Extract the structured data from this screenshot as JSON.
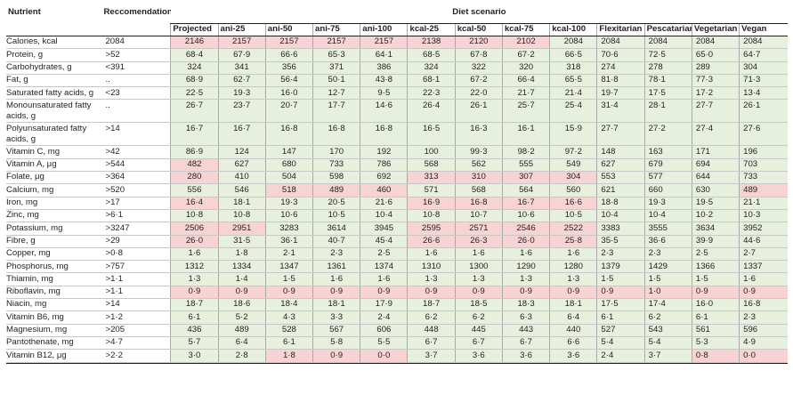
{
  "header": {
    "nutrient_label": "Nutrient",
    "recommendation_label": "Reccomendation",
    "scenario_group_label": "Diet scenario",
    "scenarios": [
      "Projected",
      "ani-25",
      "ani-50",
      "ani-75",
      "ani-100",
      "kcal-25",
      "kcal-50",
      "kcal-75",
      "kcal-100",
      "Flexitarian",
      "Pescatarian",
      "Vegetarian",
      "Vegan"
    ]
  },
  "rows": [
    {
      "nutrient": "Calories, kcal",
      "rec": "2084",
      "values": [
        "2146",
        "2157",
        "2157",
        "2157",
        "2157",
        "2138",
        "2120",
        "2102",
        "2084",
        "2084",
        "2084",
        "2084",
        "2084"
      ],
      "flags": [
        1,
        1,
        1,
        1,
        1,
        1,
        1,
        1,
        0,
        0,
        0,
        0,
        0
      ]
    },
    {
      "nutrient": "Protein, g",
      "rec": ">52",
      "values": [
        "68·4",
        "67·9",
        "66·6",
        "65·3",
        "64·1",
        "68·5",
        "67·8",
        "67·2",
        "66·5",
        "70·6",
        "72·5",
        "65·0",
        "64·7"
      ],
      "flags": [
        0,
        0,
        0,
        0,
        0,
        0,
        0,
        0,
        0,
        0,
        0,
        0,
        0
      ]
    },
    {
      "nutrient": "Carbohydrates, g",
      "rec": "<391",
      "values": [
        "324",
        "341",
        "356",
        "371",
        "386",
        "324",
        "322",
        "320",
        "318",
        "274",
        "278",
        "289",
        "304"
      ],
      "flags": [
        0,
        0,
        0,
        0,
        0,
        0,
        0,
        0,
        0,
        0,
        0,
        0,
        0
      ]
    },
    {
      "nutrient": "Fat, g",
      "rec": "..",
      "values": [
        "68·9",
        "62·7",
        "56·4",
        "50·1",
        "43·8",
        "68·1",
        "67·2",
        "66·4",
        "65·5",
        "81·8",
        "78·1",
        "77·3",
        "71·3"
      ],
      "flags": [
        0,
        0,
        0,
        0,
        0,
        0,
        0,
        0,
        0,
        0,
        0,
        0,
        0
      ]
    },
    {
      "nutrient": "Saturated fatty acids, g",
      "rec": "<23",
      "values": [
        "22·5",
        "19·3",
        "16·0",
        "12·7",
        "9·5",
        "22·3",
        "22·0",
        "21·7",
        "21·4",
        "19·7",
        "17·5",
        "17·2",
        "13·4"
      ],
      "flags": [
        0,
        0,
        0,
        0,
        0,
        0,
        0,
        0,
        0,
        0,
        0,
        0,
        0
      ]
    },
    {
      "nutrient": "Monounsaturated fatty acids, g",
      "rec": "..",
      "values": [
        "26·7",
        "23·7",
        "20·7",
        "17·7",
        "14·6",
        "26·4",
        "26·1",
        "25·7",
        "25·4",
        "31·4",
        "28·1",
        "27·7",
        "26·1"
      ],
      "flags": [
        0,
        0,
        0,
        0,
        0,
        0,
        0,
        0,
        0,
        0,
        0,
        0,
        0
      ]
    },
    {
      "nutrient": "Polyunsaturated fatty acids, g",
      "rec": ">14",
      "values": [
        "16·7",
        "16·7",
        "16·8",
        "16·8",
        "16·8",
        "16·5",
        "16·3",
        "16·1",
        "15·9",
        "27·7",
        "27·2",
        "27·4",
        "27·6"
      ],
      "flags": [
        0,
        0,
        0,
        0,
        0,
        0,
        0,
        0,
        0,
        0,
        0,
        0,
        0
      ]
    },
    {
      "nutrient": "Vitamin C, mg",
      "rec": ">42",
      "values": [
        "86·9",
        "124",
        "147",
        "170",
        "192",
        "100",
        "99·3",
        "98·2",
        "97·2",
        "148",
        "163",
        "171",
        "196"
      ],
      "flags": [
        0,
        0,
        0,
        0,
        0,
        0,
        0,
        0,
        0,
        0,
        0,
        0,
        0
      ]
    },
    {
      "nutrient": "Vitamin A, μg",
      "rec": ">544",
      "values": [
        "482",
        "627",
        "680",
        "733",
        "786",
        "568",
        "562",
        "555",
        "549",
        "627",
        "679",
        "694",
        "703"
      ],
      "flags": [
        1,
        0,
        0,
        0,
        0,
        0,
        0,
        0,
        0,
        0,
        0,
        0,
        0
      ]
    },
    {
      "nutrient": "Folate, μg",
      "rec": ">364",
      "values": [
        "280",
        "410",
        "504",
        "598",
        "692",
        "313",
        "310",
        "307",
        "304",
        "553",
        "577",
        "644",
        "733"
      ],
      "flags": [
        1,
        0,
        0,
        0,
        0,
        1,
        1,
        1,
        1,
        0,
        0,
        0,
        0
      ]
    },
    {
      "nutrient": "Calcium, mg",
      "rec": ">520",
      "values": [
        "556",
        "546",
        "518",
        "489",
        "460",
        "571",
        "568",
        "564",
        "560",
        "621",
        "660",
        "630",
        "489"
      ],
      "flags": [
        0,
        0,
        1,
        1,
        1,
        0,
        0,
        0,
        0,
        0,
        0,
        0,
        1
      ]
    },
    {
      "nutrient": "Iron, mg",
      "rec": ">17",
      "values": [
        "16·4",
        "18·1",
        "19·3",
        "20·5",
        "21·6",
        "16·9",
        "16·8",
        "16·7",
        "16·6",
        "18·8",
        "19·3",
        "19·5",
        "21·1"
      ],
      "flags": [
        1,
        0,
        0,
        0,
        0,
        1,
        1,
        1,
        1,
        0,
        0,
        0,
        0
      ]
    },
    {
      "nutrient": "Zinc, mg",
      "rec": ">6·1",
      "values": [
        "10·8",
        "10·8",
        "10·6",
        "10·5",
        "10·4",
        "10·8",
        "10·7",
        "10·6",
        "10·5",
        "10·4",
        "10·4",
        "10·2",
        "10·3"
      ],
      "flags": [
        0,
        0,
        0,
        0,
        0,
        0,
        0,
        0,
        0,
        0,
        0,
        0,
        0
      ]
    },
    {
      "nutrient": "Potassium, mg",
      "rec": ">3247",
      "values": [
        "2506",
        "2951",
        "3283",
        "3614",
        "3945",
        "2595",
        "2571",
        "2546",
        "2522",
        "3383",
        "3555",
        "3634",
        "3952"
      ],
      "flags": [
        1,
        1,
        0,
        0,
        0,
        1,
        1,
        1,
        1,
        0,
        0,
        0,
        0
      ]
    },
    {
      "nutrient": "Fibre, g",
      "rec": ">29",
      "values": [
        "26·0",
        "31·5",
        "36·1",
        "40·7",
        "45·4",
        "26·6",
        "26·3",
        "26·0",
        "25·8",
        "35·5",
        "36·6",
        "39·9",
        "44·6"
      ],
      "flags": [
        1,
        0,
        0,
        0,
        0,
        1,
        1,
        1,
        1,
        0,
        0,
        0,
        0
      ]
    },
    {
      "nutrient": "Copper, mg",
      "rec": ">0·8",
      "values": [
        "1·6",
        "1·8",
        "2·1",
        "2·3",
        "2·5",
        "1·6",
        "1·6",
        "1·6",
        "1·6",
        "2·3",
        "2·3",
        "2·5",
        "2·7"
      ],
      "flags": [
        0,
        0,
        0,
        0,
        0,
        0,
        0,
        0,
        0,
        0,
        0,
        0,
        0
      ]
    },
    {
      "nutrient": "Phosphorus, mg",
      "rec": ">757",
      "values": [
        "1312",
        "1334",
        "1347",
        "1361",
        "1374",
        "1310",
        "1300",
        "1290",
        "1280",
        "1379",
        "1429",
        "1366",
        "1337"
      ],
      "flags": [
        0,
        0,
        0,
        0,
        0,
        0,
        0,
        0,
        0,
        0,
        0,
        0,
        0
      ]
    },
    {
      "nutrient": "Thiamin, mg",
      "rec": ">1·1",
      "values": [
        "1·3",
        "1·4",
        "1·5",
        "1·6",
        "1·6",
        "1·3",
        "1·3",
        "1·3",
        "1·3",
        "1·5",
        "1·5",
        "1·5",
        "1·6"
      ],
      "flags": [
        0,
        0,
        0,
        0,
        0,
        0,
        0,
        0,
        0,
        0,
        0,
        0,
        0
      ]
    },
    {
      "nutrient": "Riboflavin, mg",
      "rec": ">1·1",
      "values": [
        "0·9",
        "0·9",
        "0·9",
        "0·9",
        "0·9",
        "0·9",
        "0·9",
        "0·9",
        "0·9",
        "0·9",
        "1·0",
        "0·9",
        "0·9"
      ],
      "flags": [
        1,
        1,
        1,
        1,
        1,
        1,
        1,
        1,
        1,
        1,
        1,
        1,
        1
      ]
    },
    {
      "nutrient": "Niacin, mg",
      "rec": ">14",
      "values": [
        "18·7",
        "18·6",
        "18·4",
        "18·1",
        "17·9",
        "18·7",
        "18·5",
        "18·3",
        "18·1",
        "17·5",
        "17·4",
        "16·0",
        "16·8"
      ],
      "flags": [
        0,
        0,
        0,
        0,
        0,
        0,
        0,
        0,
        0,
        0,
        0,
        0,
        0
      ]
    },
    {
      "nutrient": "Vitamin B6, mg",
      "rec": ">1·2",
      "values": [
        "6·1",
        "5·2",
        "4·3",
        "3·3",
        "2·4",
        "6·2",
        "6·2",
        "6·3",
        "6·4",
        "6·1",
        "6·2",
        "6·1",
        "2·3"
      ],
      "flags": [
        0,
        0,
        0,
        0,
        0,
        0,
        0,
        0,
        0,
        0,
        0,
        0,
        0
      ]
    },
    {
      "nutrient": "Magnesium, mg",
      "rec": ">205",
      "values": [
        "436",
        "489",
        "528",
        "567",
        "606",
        "448",
        "445",
        "443",
        "440",
        "527",
        "543",
        "561",
        "596"
      ],
      "flags": [
        0,
        0,
        0,
        0,
        0,
        0,
        0,
        0,
        0,
        0,
        0,
        0,
        0
      ]
    },
    {
      "nutrient": "Pantothenate, mg",
      "rec": ">4·7",
      "values": [
        "5·7",
        "6·4",
        "6·1",
        "5·8",
        "5·5",
        "6·7",
        "6·7",
        "6·7",
        "6·6",
        "5·4",
        "5·4",
        "5·3",
        "4·9"
      ],
      "flags": [
        0,
        0,
        0,
        0,
        0,
        0,
        0,
        0,
        0,
        0,
        0,
        0,
        0
      ]
    },
    {
      "nutrient": "Vitamin B12, μg",
      "rec": ">2·2",
      "values": [
        "3·0",
        "2·8",
        "1·8",
        "0·9",
        "0·0",
        "3·7",
        "3·6",
        "3·6",
        "3·6",
        "2·4",
        "3·7",
        "0·8",
        "0·0"
      ],
      "flags": [
        0,
        0,
        1,
        1,
        1,
        0,
        0,
        0,
        0,
        0,
        0,
        1,
        1
      ]
    }
  ],
  "colors": {
    "ok": "#e6f0dc",
    "below_recommendation": "#f7d3d4",
    "rule": "#231f20"
  }
}
